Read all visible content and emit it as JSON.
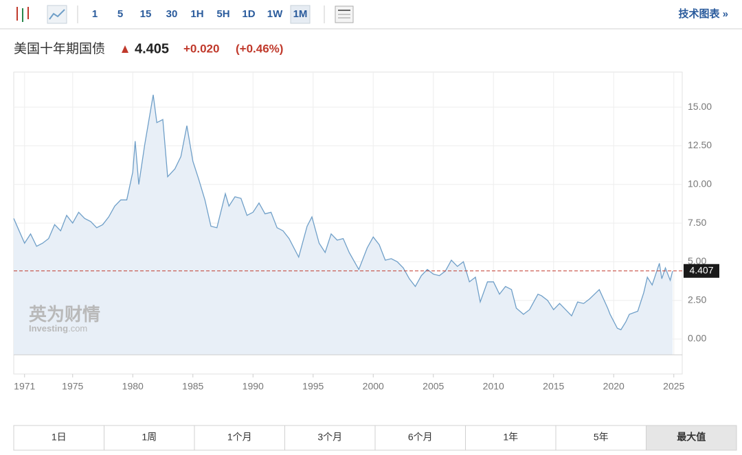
{
  "toolbar": {
    "intervals": [
      "1",
      "5",
      "15",
      "30",
      "1H",
      "5H",
      "1D",
      "1W",
      "1M"
    ],
    "active_interval": 8,
    "tech_chart": "技术图表 »"
  },
  "header": {
    "name": "美国十年期国债",
    "price": "4.405",
    "change": "+0.020",
    "change_pct": "(+0.46%)"
  },
  "watermark": {
    "cn": "英为财情",
    "brand": "Investing",
    "brand_suffix": ".com"
  },
  "ranges": {
    "items": [
      "1日",
      "1周",
      "1个月",
      "3个月",
      "6个月",
      "1年",
      "5年",
      "最大值"
    ],
    "active": 7
  },
  "chart_data": {
    "type": "area",
    "color": "#6f9fc8",
    "fill": "#e8eff7",
    "grid": true,
    "x": [
      1970.1,
      1971.0,
      1971.5,
      1972.0,
      1972.5,
      1973.0,
      1973.5,
      1974.0,
      1974.5,
      1975.0,
      1975.5,
      1976.0,
      1976.5,
      1977.0,
      1977.5,
      1978.0,
      1978.5,
      1979.0,
      1979.5,
      1980.0,
      1980.2,
      1980.5,
      1981.0,
      1981.7,
      1982.0,
      1982.5,
      1982.9,
      1983.5,
      1984.0,
      1984.5,
      1985.0,
      1985.5,
      1986.0,
      1986.5,
      1987.0,
      1987.7,
      1988.0,
      1988.5,
      1989.0,
      1989.5,
      1990.0,
      1990.5,
      1991.0,
      1991.5,
      1992.0,
      1992.5,
      1993.0,
      1993.8,
      1994.5,
      1994.9,
      1995.5,
      1996.0,
      1996.5,
      1997.0,
      1997.5,
      1998.0,
      1998.8,
      1999.5,
      2000.0,
      2000.5,
      2001.0,
      2001.5,
      2002.0,
      2002.5,
      2003.0,
      2003.5,
      2004.0,
      2004.5,
      2005.0,
      2005.5,
      2006.0,
      2006.5,
      2007.0,
      2007.5,
      2008.0,
      2008.5,
      2008.9,
      2009.5,
      2010.0,
      2010.5,
      2011.0,
      2011.5,
      2011.9,
      2012.5,
      2013.0,
      2013.7,
      2014.0,
      2014.5,
      2015.0,
      2015.5,
      2016.0,
      2016.5,
      2017.0,
      2017.5,
      2018.0,
      2018.8,
      2019.5,
      2019.7,
      2020.3,
      2020.6,
      2021.0,
      2021.3,
      2022.0,
      2022.5,
      2022.8,
      2023.2,
      2023.8,
      2024.0,
      2024.3,
      2024.7,
      2024.9
    ],
    "values": [
      7.8,
      6.2,
      6.8,
      6.0,
      6.2,
      6.5,
      7.4,
      7.0,
      8.0,
      7.5,
      8.2,
      7.8,
      7.6,
      7.2,
      7.4,
      7.9,
      8.6,
      9.0,
      9.0,
      10.8,
      12.8,
      10.0,
      12.6,
      15.8,
      14.0,
      14.2,
      10.5,
      11.0,
      11.8,
      13.8,
      11.5,
      10.3,
      9.0,
      7.3,
      7.2,
      9.4,
      8.6,
      9.2,
      9.1,
      8.0,
      8.2,
      8.8,
      8.1,
      8.2,
      7.2,
      7.0,
      6.5,
      5.3,
      7.3,
      7.9,
      6.2,
      5.6,
      6.8,
      6.4,
      6.5,
      5.6,
      4.5,
      5.9,
      6.6,
      6.1,
      5.1,
      5.2,
      5.0,
      4.6,
      3.9,
      3.4,
      4.1,
      4.5,
      4.2,
      4.1,
      4.4,
      5.1,
      4.7,
      5.0,
      3.7,
      4.0,
      2.4,
      3.7,
      3.7,
      2.9,
      3.4,
      3.2,
      2.0,
      1.6,
      1.9,
      2.9,
      2.8,
      2.5,
      1.9,
      2.3,
      1.9,
      1.5,
      2.4,
      2.3,
      2.6,
      3.2,
      2.0,
      1.6,
      0.7,
      0.6,
      1.1,
      1.6,
      1.8,
      3.0,
      4.0,
      3.5,
      4.9,
      3.9,
      4.6,
      3.8,
      4.4
    ],
    "xlim": [
      1970.1,
      2025.7
    ],
    "xticks": [
      1971,
      1975,
      1980,
      1985,
      1990,
      1995,
      2000,
      2005,
      2010,
      2015,
      2020,
      2025
    ],
    "ylim": [
      -1.02,
      17.27
    ],
    "yticks": [
      {
        "value": 0,
        "label": "0.00"
      },
      {
        "value": 2.5,
        "label": "2.50"
      },
      {
        "value": 5,
        "label": "5.00"
      },
      {
        "value": 7.5,
        "label": "7.50"
      },
      {
        "value": 10,
        "label": "10.00"
      },
      {
        "value": 12.5,
        "label": "12.50"
      },
      {
        "value": 15,
        "label": "15.00"
      }
    ],
    "current_value": 4.407,
    "current_color": "#c0392b"
  }
}
